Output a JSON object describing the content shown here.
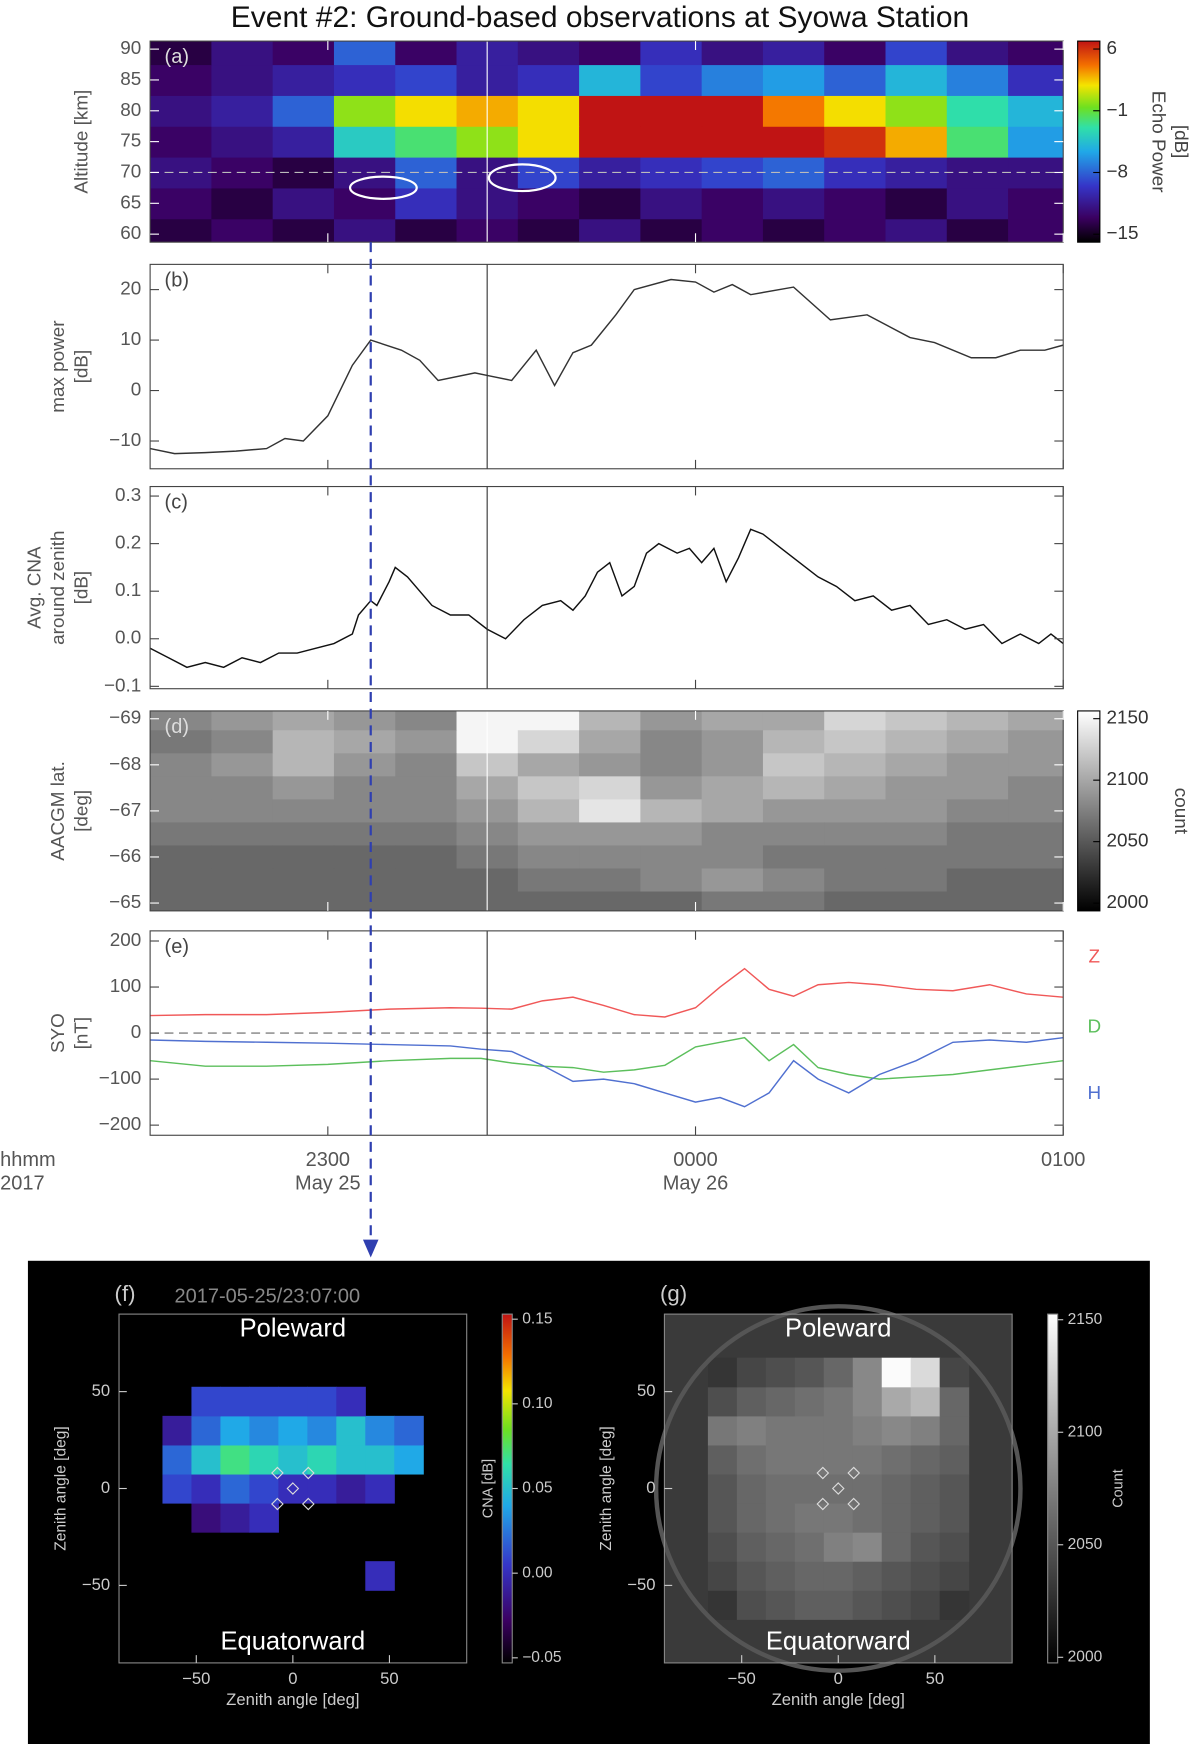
{
  "chart_data": [
    {
      "type": "heatmap",
      "title": "Event #2: Ground-based observations at Syowa Station",
      "panel_label": "(a)",
      "ylabel": [
        "Altitude [km]"
      ],
      "colormap": "rainbow",
      "x": [
        -84,
        -74,
        -64,
        -54,
        -44,
        -34,
        -24,
        -14,
        -4,
        6,
        16,
        26,
        36,
        46,
        56
      ],
      "y": [
        60,
        65,
        70,
        75,
        80,
        85,
        90
      ],
      "z": [
        [
          -14,
          -13,
          -14,
          -12,
          -14,
          -13,
          -14,
          -12,
          -14,
          -13,
          -14,
          -13,
          -12,
          -14,
          -13
        ],
        [
          -13,
          -14,
          -12,
          -13,
          -10,
          -12,
          -13,
          -14,
          -12,
          -13,
          -12,
          -13,
          -14,
          -12,
          -13
        ],
        [
          -12,
          -13,
          -14,
          -12,
          -8,
          -12,
          -9,
          -11,
          -10,
          -9,
          -8,
          -10,
          -11,
          -12,
          -12
        ],
        [
          -13,
          -12,
          -11,
          -4,
          -2,
          0,
          2,
          7,
          7,
          7,
          7,
          6,
          3,
          -2,
          -6
        ],
        [
          -12,
          -11,
          -8,
          0,
          2,
          3,
          2,
          7,
          7,
          7,
          4,
          2,
          0,
          -3,
          -5
        ],
        [
          -13,
          -12,
          -11,
          -10,
          -9,
          -11,
          -10,
          -5,
          -9,
          -7,
          -6,
          -8,
          -5,
          -7,
          -10
        ],
        [
          -14,
          -12,
          -13,
          -8,
          -13,
          -11,
          -12,
          -13,
          -10,
          -12,
          -11,
          -13,
          -9,
          -12,
          -13
        ]
      ],
      "ylim": [
        58.7,
        91.3
      ],
      "yticks": [
        60,
        65,
        70,
        75,
        80,
        85,
        90
      ],
      "reference_line": 70,
      "clim": [
        -15.9,
        6.9
      ],
      "cticks": [
        6,
        {
          "value": -1,
          "label": "−1"
        },
        {
          "value": -8,
          "label": "−8"
        },
        {
          "value": -15,
          "label": "−15"
        }
      ],
      "colorbar_label": [
        "Echo Power",
        "[dB]"
      ]
    },
    {
      "type": "line",
      "panel_label": "(b)",
      "ylabel": [
        "max power",
        "[dB]"
      ],
      "color": "#333333",
      "x": [
        -89,
        -85,
        -80,
        -75,
        -70,
        -67,
        -64,
        -60,
        -56,
        -53,
        -48,
        -45,
        -42,
        -36,
        -34,
        -30,
        -26,
        -23,
        -20,
        -17,
        -13,
        -10,
        -4,
        0,
        3,
        6,
        9,
        16,
        22,
        28,
        35,
        39,
        45,
        49,
        53,
        57,
        60
      ],
      "values": [
        -11.5,
        -12.5,
        -12.3,
        -12,
        -11.5,
        -9.5,
        -10,
        -5,
        5,
        10,
        8,
        6,
        2,
        3.5,
        3,
        2,
        8,
        1,
        7.5,
        9,
        15,
        20,
        22,
        21.5,
        19.5,
        21,
        19,
        20.5,
        14,
        15,
        10.5,
        9.5,
        6.5,
        6.5,
        8,
        8,
        9
      ],
      "ylim": [
        -15.5,
        25
      ],
      "yticks": [
        {
          "value": -10,
          "label": "−10"
        },
        0,
        10,
        20
      ]
    },
    {
      "type": "line",
      "panel_label": "(c)",
      "ylabel": [
        "Avg. CNA",
        "around zenith",
        "[dB]"
      ],
      "color": "#111111",
      "x": [
        -89,
        -86,
        -83,
        -80,
        -77,
        -74,
        -71,
        -68,
        -65,
        -62,
        -59,
        -56,
        -55,
        -53,
        -52,
        -50,
        -49,
        -47,
        -45,
        -43,
        -40,
        -37,
        -34,
        -31,
        -28,
        -25,
        -22,
        -20,
        -18,
        -16,
        -14,
        -12,
        -10,
        -8,
        -6,
        -3,
        -1,
        1,
        3,
        5,
        7,
        9,
        11,
        14,
        17,
        20,
        23,
        26,
        29,
        32,
        35,
        38,
        41,
        44,
        47,
        50,
        53,
        56,
        58,
        60
      ],
      "values": [
        -0.02,
        -0.04,
        -0.06,
        -0.05,
        -0.06,
        -0.04,
        -0.05,
        -0.03,
        -0.03,
        -0.02,
        -0.01,
        0.01,
        0.05,
        0.08,
        0.07,
        0.12,
        0.15,
        0.13,
        0.1,
        0.07,
        0.05,
        0.05,
        0.02,
        0.0,
        0.04,
        0.07,
        0.08,
        0.06,
        0.09,
        0.14,
        0.16,
        0.09,
        0.11,
        0.18,
        0.2,
        0.18,
        0.19,
        0.16,
        0.19,
        0.12,
        0.17,
        0.23,
        0.22,
        0.19,
        0.16,
        0.13,
        0.11,
        0.08,
        0.09,
        0.06,
        0.07,
        0.03,
        0.04,
        0.02,
        0.03,
        -0.01,
        0.01,
        -0.01,
        0.01,
        -0.01
      ],
      "ylim": [
        -0.105,
        0.32
      ],
      "yticks": [
        {
          "value": -0.1,
          "label": "−0.1"
        },
        {
          "value": 0,
          "label": "0.0"
        },
        0.1,
        0.2,
        0.3
      ]
    },
    {
      "type": "heatmap",
      "panel_label": "(d)",
      "ylabel": [
        "AACGM lat.",
        "[deg]"
      ],
      "colormap": "gray",
      "x": [
        -84,
        -74,
        -64,
        -54,
        -44,
        -34,
        -24,
        -14,
        -4,
        6,
        16,
        26,
        36,
        46,
        56
      ],
      "y": [
        -69,
        -68.5,
        -68,
        -67.5,
        -67,
        -66.5,
        -66,
        -65.5,
        -65
      ],
      "z": [
        [
          2080,
          2090,
          2100,
          2090,
          2080,
          2150,
          2150,
          2110,
          2090,
          2100,
          2100,
          2130,
          2120,
          2110,
          2100
        ],
        [
          2070,
          2080,
          2110,
          2100,
          2090,
          2150,
          2130,
          2100,
          2080,
          2090,
          2110,
          2120,
          2110,
          2100,
          2090
        ],
        [
          2080,
          2090,
          2110,
          2090,
          2080,
          2120,
          2100,
          2090,
          2080,
          2090,
          2120,
          2110,
          2100,
          2090,
          2090
        ],
        [
          2080,
          2080,
          2090,
          2080,
          2080,
          2100,
          2120,
          2130,
          2090,
          2100,
          2110,
          2100,
          2090,
          2090,
          2080
        ],
        [
          2080,
          2080,
          2080,
          2080,
          2080,
          2090,
          2110,
          2140,
          2110,
          2100,
          2090,
          2090,
          2090,
          2080,
          2080
        ],
        [
          2070,
          2070,
          2070,
          2070,
          2070,
          2080,
          2090,
          2090,
          2090,
          2080,
          2080,
          2080,
          2080,
          2070,
          2070
        ],
        [
          2060,
          2060,
          2060,
          2060,
          2060,
          2070,
          2080,
          2080,
          2080,
          2080,
          2070,
          2070,
          2070,
          2070,
          2070
        ],
        [
          2060,
          2060,
          2060,
          2060,
          2060,
          2060,
          2070,
          2070,
          2080,
          2090,
          2080,
          2070,
          2070,
          2060,
          2060
        ],
        [
          2060,
          2060,
          2060,
          2060,
          2060,
          2060,
          2060,
          2060,
          2060,
          2070,
          2070,
          2060,
          2060,
          2060,
          2060
        ]
      ],
      "ylim": [
        -64.83,
        -69.17
      ],
      "yticks": [
        {
          "value": -69,
          "label": "−69"
        },
        {
          "value": -68,
          "label": "−68"
        },
        {
          "value": -67,
          "label": "−67"
        },
        {
          "value": -66,
          "label": "−66"
        },
        {
          "value": -65,
          "label": "−65"
        }
      ],
      "clim": [
        1993.7,
        2156.3
      ],
      "cticks": [
        2150,
        2100,
        2050,
        2000
      ],
      "colorbar_label": [
        "count"
      ]
    },
    {
      "type": "line",
      "panel_label": "(e)",
      "ylabel": [
        "SYO",
        "[nT]"
      ],
      "x": [
        -89,
        -80,
        -70,
        -60,
        -50,
        -40,
        -35,
        -30,
        -25,
        -20,
        -15,
        -10,
        -5,
        0,
        4,
        8,
        12,
        16,
        20,
        25,
        30,
        36,
        42,
        48,
        54,
        60
      ],
      "series": [
        {
          "name": "Z",
          "color": "#f05858",
          "values": [
            38,
            40,
            40,
            45,
            52,
            55,
            54,
            52,
            70,
            78,
            60,
            40,
            35,
            55,
            100,
            140,
            95,
            80,
            105,
            110,
            105,
            95,
            92,
            105,
            85,
            78
          ]
        },
        {
          "name": "D",
          "color": "#5cbf5c",
          "values": [
            -60,
            -72,
            -72,
            -68,
            -60,
            -55,
            -55,
            -65,
            -72,
            -75,
            -85,
            -80,
            -70,
            -30,
            -20,
            -10,
            -60,
            -25,
            -75,
            -90,
            -100,
            -95,
            -90,
            -80,
            -70,
            -60
          ]
        },
        {
          "name": "H",
          "color": "#5070d0",
          "values": [
            -15,
            -18,
            -20,
            -22,
            -25,
            -28,
            -35,
            -40,
            -70,
            -105,
            -100,
            -110,
            -130,
            -150,
            -140,
            -160,
            -130,
            -60,
            -100,
            -130,
            -90,
            -60,
            -20,
            -15,
            -20,
            -10
          ]
        }
      ],
      "ylim": [
        -222,
        222
      ],
      "yticks": [
        {
          "value": -200,
          "label": "−200"
        },
        {
          "value": -100,
          "label": "−100"
        },
        0,
        100,
        200
      ],
      "reference_line": 0,
      "xlim": [
        -89,
        60
      ],
      "xticks": [
        {
          "value": -60,
          "label": "2300"
        },
        {
          "value": 0,
          "label": "0000"
        },
        {
          "value": 60,
          "label": "0100"
        }
      ],
      "xtick_sublabels": [
        {
          "value": -60,
          "label": "May 25"
        },
        {
          "value": 0,
          "label": "May 26"
        }
      ],
      "xlabel": [
        "hhmm",
        "2017"
      ],
      "event_line": -34
    },
    {
      "type": "contour",
      "panel_label": "(f)",
      "timestamp": "2017-05-25/23:07:00",
      "arrow_time": -53,
      "top_label": "Poleward",
      "bottom_label": "Equatorward",
      "colormap": "rainbow",
      "x": [
        -60,
        -45,
        -30,
        -15,
        0,
        15,
        30,
        45,
        60
      ],
      "y": [
        -45,
        -30,
        -15,
        0,
        15,
        30,
        45
      ],
      "z": [
        [
          null,
          null,
          null,
          null,
          null,
          null,
          null,
          0.0,
          null
        ],
        [
          null,
          null,
          null,
          null,
          null,
          null,
          null,
          null,
          null
        ],
        [
          null,
          -0.02,
          -0.01,
          0.0,
          null,
          null,
          null,
          null,
          null
        ],
        [
          0.01,
          0.0,
          0.02,
          0.01,
          0.0,
          0.0,
          -0.01,
          0.0,
          null
        ],
        [
          0.02,
          0.05,
          0.07,
          0.06,
          0.05,
          0.06,
          0.05,
          0.05,
          0.04
        ],
        [
          -0.01,
          0.02,
          0.04,
          0.03,
          0.04,
          0.03,
          0.05,
          0.03,
          0.02
        ],
        [
          null,
          0.01,
          0.01,
          0.01,
          0.01,
          0.01,
          0.0,
          null,
          null
        ]
      ],
      "xlim": [
        -90,
        90
      ],
      "ylim": [
        -90,
        90
      ],
      "xticks": [
        {
          "value": -50,
          "label": "−50"
        },
        0,
        50
      ],
      "yticks": [
        {
          "value": -50,
          "label": "−50"
        },
        0,
        50
      ],
      "xlabel": "Zenith angle [deg]",
      "ylabel": "Zenith angle [deg]",
      "clim": [
        -0.053,
        0.153
      ],
      "cticks": [
        0.15,
        {
          "value": 0.1,
          "label": "0.10"
        },
        0.05,
        {
          "value": 0,
          "label": "0.00"
        },
        {
          "value": -0.05,
          "label": "−0.05"
        }
      ],
      "colorbar_label": "CNA [dB]"
    },
    {
      "type": "image",
      "panel_label": "(g)",
      "top_label": "Poleward",
      "bottom_label": "Equatorward",
      "colormap": "gray",
      "x": [
        -60,
        -45,
        -30,
        -15,
        0,
        15,
        30,
        45,
        60
      ],
      "y": [
        -60,
        -45,
        -30,
        -15,
        0,
        15,
        30,
        45,
        60
      ],
      "z": [
        [
          2030,
          2045,
          2050,
          2055,
          2055,
          2050,
          2045,
          2040,
          2030
        ],
        [
          2040,
          2050,
          2055,
          2060,
          2060,
          2055,
          2050,
          2045,
          2040
        ],
        [
          2045,
          2055,
          2060,
          2065,
          2075,
          2080,
          2060,
          2050,
          2045
        ],
        [
          2050,
          2060,
          2065,
          2070,
          2070,
          2065,
          2060,
          2055,
          2050
        ],
        [
          2050,
          2060,
          2065,
          2065,
          2065,
          2065,
          2060,
          2055,
          2050
        ],
        [
          2055,
          2065,
          2070,
          2070,
          2070,
          2070,
          2065,
          2060,
          2055
        ],
        [
          2070,
          2075,
          2070,
          2070,
          2070,
          2075,
          2080,
          2075,
          2060
        ],
        [
          2045,
          2055,
          2060,
          2065,
          2070,
          2080,
          2100,
          2110,
          2060
        ],
        [
          2030,
          2040,
          2045,
          2050,
          2060,
          2080,
          2150,
          2130,
          2040
        ]
      ],
      "xlim": [
        -90,
        90
      ],
      "ylim": [
        -90,
        90
      ],
      "xticks": [
        {
          "value": -50,
          "label": "−50"
        },
        0,
        50
      ],
      "yticks": [
        {
          "value": -50,
          "label": "−50"
        },
        0,
        50
      ],
      "xlabel": "Zenith angle [deg]",
      "ylabel": "Zenith angle [deg]",
      "clim": [
        1997.5,
        2152.5
      ],
      "cticks": [
        2150,
        2100,
        2050,
        2000
      ],
      "colorbar_label": "Count"
    }
  ]
}
